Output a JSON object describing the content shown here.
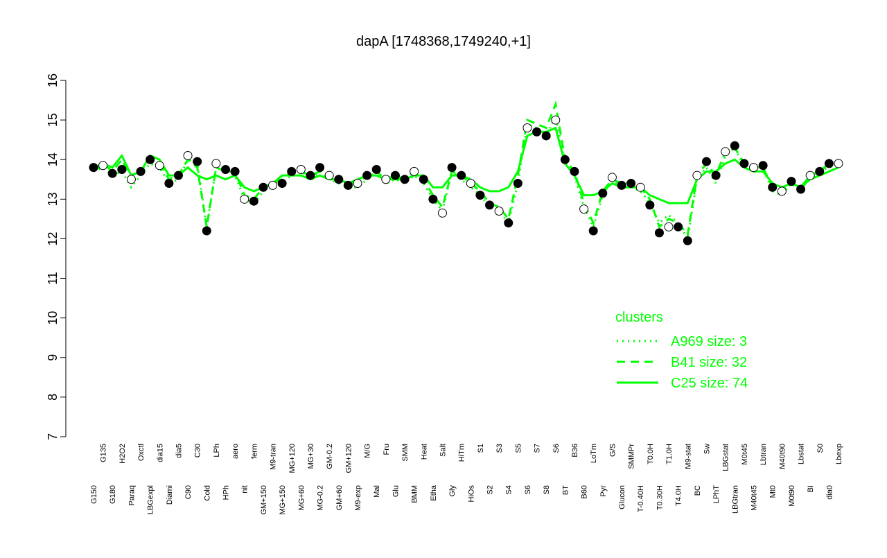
{
  "chart_data": {
    "type": "line",
    "title": "dapA [1748368,1749240,+1]",
    "categories": [
      "G150",
      "G135",
      "G180",
      "H2O2",
      "Paraq",
      "Oxctl",
      "LBGexpl",
      "dia15",
      "Diami",
      "dia5",
      "C90",
      "C30",
      "Cold",
      "LPh",
      "HPh",
      "aero",
      "nit",
      "ferm",
      "GM+150",
      "M9-tran",
      "MG+150",
      "MG+120",
      "MG+60",
      "MG+30",
      "MG-0.2",
      "GM-0.2",
      "GM+60",
      "GM+120",
      "M9-exp",
      "M/G",
      "Mal",
      "Fru",
      "Glu",
      "SMM",
      "BMM",
      "Heat",
      "Etha",
      "Salt",
      "Gly",
      "HiTm",
      "HiOs",
      "S1",
      "S2",
      "S3",
      "S4",
      "S5",
      "S6",
      "S7",
      "S8",
      "S6",
      "BT",
      "B36",
      "B60",
      "LoTm",
      "Pyr",
      "G/S",
      "Glucon",
      "SMMPr",
      "T-0.40H",
      "T0.0H",
      "T0.30H",
      "T1.0H",
      "T4.0H",
      "M9-stat",
      "BC",
      "Sw",
      "LPhT",
      "LBGstat",
      "LBGtran",
      "M0t45",
      "M40t45",
      "Lbtran",
      "Mt0",
      "M40t90",
      "M0t90",
      "Lbstat",
      "BI",
      "S0",
      "dia0",
      "Lbexp"
    ],
    "values": [
      13.8,
      13.85,
      13.65,
      13.75,
      13.5,
      13.7,
      14.0,
      13.85,
      13.4,
      13.6,
      14.1,
      13.95,
      12.2,
      13.9,
      13.75,
      13.7,
      13.0,
      12.95,
      13.3,
      13.35,
      13.4,
      13.7,
      13.75,
      13.6,
      13.8,
      13.6,
      13.5,
      13.35,
      13.4,
      13.6,
      13.75,
      13.5,
      13.6,
      13.5,
      13.7,
      13.5,
      13.0,
      12.65,
      13.8,
      13.6,
      13.4,
      13.1,
      12.85,
      12.7,
      12.4,
      13.4,
      14.8,
      14.7,
      14.6,
      15.0,
      14.0,
      13.7,
      12.75,
      12.2,
      13.15,
      13.55,
      13.35,
      13.4,
      13.3,
      12.85,
      12.15,
      12.3,
      12.3,
      11.95,
      13.6,
      13.95,
      13.6,
      14.2,
      14.35,
      13.9,
      13.8,
      13.85,
      13.3,
      13.2,
      13.45,
      13.25,
      13.6,
      13.7,
      13.9,
      13.9
    ],
    "series": [
      {
        "name": "A969 size: 3",
        "color": "#00ff00",
        "style": "dotted",
        "values": [
          13.7,
          13.8,
          13.6,
          13.7,
          13.3,
          13.6,
          13.9,
          13.8,
          13.4,
          13.5,
          14.0,
          13.9,
          12.3,
          13.8,
          13.7,
          13.6,
          13.0,
          12.9,
          13.2,
          13.3,
          13.4,
          13.6,
          13.7,
          13.5,
          13.7,
          13.5,
          13.4,
          13.3,
          13.3,
          13.5,
          13.7,
          13.4,
          13.5,
          13.4,
          13.6,
          13.4,
          13.0,
          12.7,
          13.7,
          13.5,
          13.3,
          13.1,
          12.8,
          12.7,
          12.4,
          13.4,
          14.9,
          14.8,
          14.6,
          15.1,
          13.9,
          13.6,
          12.8,
          12.3,
          13.1,
          13.5,
          13.3,
          13.3,
          13.2,
          12.9,
          12.4,
          12.6,
          12.4,
          12.0,
          13.5,
          13.8,
          13.4,
          14.1,
          14.3,
          13.8,
          13.7,
          13.8,
          13.2,
          13.1,
          13.4,
          13.2,
          13.6,
          13.7,
          13.8,
          13.9
        ]
      },
      {
        "name": "B41 size: 32",
        "color": "#00ff00",
        "style": "dashed",
        "values": [
          13.8,
          13.9,
          13.7,
          14.0,
          13.5,
          13.7,
          14.0,
          13.9,
          13.5,
          13.6,
          14.0,
          13.8,
          12.3,
          13.8,
          13.7,
          13.7,
          13.1,
          13.0,
          13.3,
          13.4,
          13.5,
          13.7,
          13.7,
          13.6,
          13.7,
          13.6,
          13.5,
          13.4,
          13.4,
          13.6,
          13.7,
          13.5,
          13.6,
          13.5,
          13.7,
          13.5,
          13.1,
          12.8,
          13.7,
          13.6,
          13.4,
          13.2,
          12.9,
          12.8,
          12.5,
          13.6,
          15.0,
          14.9,
          14.8,
          15.4,
          14.0,
          13.7,
          12.9,
          12.4,
          13.2,
          13.5,
          13.4,
          13.4,
          13.3,
          13.0,
          12.3,
          12.5,
          12.4,
          12.1,
          13.6,
          13.9,
          13.6,
          14.2,
          14.3,
          13.9,
          13.8,
          13.8,
          13.3,
          13.2,
          13.4,
          13.3,
          13.6,
          13.7,
          13.9,
          13.9
        ]
      },
      {
        "name": "C25 size: 74",
        "color": "#00ff00",
        "style": "solid",
        "values": [
          13.7,
          13.9,
          13.8,
          14.1,
          13.6,
          13.7,
          14.1,
          14.0,
          13.6,
          13.6,
          13.8,
          13.6,
          13.5,
          13.6,
          13.5,
          13.6,
          13.3,
          13.2,
          13.3,
          13.4,
          13.6,
          13.6,
          13.6,
          13.5,
          13.6,
          13.5,
          13.5,
          13.4,
          13.5,
          13.6,
          13.6,
          13.5,
          13.5,
          13.5,
          13.6,
          13.6,
          13.3,
          13.3,
          13.6,
          13.6,
          13.5,
          13.3,
          13.2,
          13.2,
          13.3,
          13.7,
          14.6,
          14.7,
          14.7,
          14.8,
          13.9,
          13.6,
          13.1,
          13.1,
          13.2,
          13.4,
          13.3,
          13.3,
          13.3,
          13.1,
          13.0,
          12.9,
          12.9,
          12.9,
          13.5,
          13.7,
          13.7,
          13.9,
          14.0,
          13.8,
          13.7,
          13.7,
          13.4,
          13.3,
          13.4,
          13.3,
          13.5,
          13.6,
          13.7,
          13.8
        ]
      }
    ],
    "legend_title": "clusters",
    "ylim": [
      7,
      16
    ],
    "yticks": [
      7,
      8,
      9,
      10,
      11,
      12,
      13,
      14,
      15,
      16
    ]
  }
}
